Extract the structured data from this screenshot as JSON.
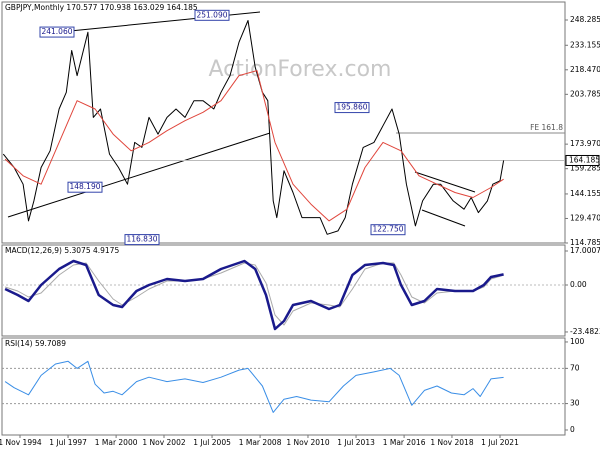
{
  "chart_data": [
    {
      "type": "line",
      "title": "GBPJPY,Monthly 170.577 170.938 163.029 164.185",
      "watermark": "ActionForex.com",
      "xlim": [
        1993.83,
        2025.11
      ],
      "ylim": [
        114.785,
        259.06
      ],
      "yticks": [
        248.285,
        233.155,
        {
          "value": 218.47,
          "label": "218.470"
        },
        203.785,
        {
          "value": 173.97,
          "label": "173.970"
        },
        159.285,
        144.155,
        {
          "value": 129.47,
          "label": "129.470"
        },
        114.785
      ],
      "current": 164.185,
      "fe_label": "FE 161.8",
      "annotations": [
        {
          "value": 241.06,
          "label": "241.060"
        },
        {
          "value": 251.09,
          "label": "251.090"
        },
        {
          "value": 148.19,
          "label": "148.190"
        },
        {
          "value": 116.83,
          "label": "116.830"
        },
        {
          "value": 195.86,
          "label": "195.860"
        },
        {
          "value": 122.75,
          "label": "122.750"
        }
      ],
      "series": [
        {
          "color": "#000000",
          "width": 1,
          "x": [
            1993.9,
            1994.5,
            1995.0,
            1995.3,
            1995.6,
            1996.0,
            1996.5,
            1997.0,
            1997.4,
            1997.7,
            1998.0,
            1998.6,
            1998.9,
            1999.3,
            1999.8,
            2000.3,
            2000.8,
            2001.2,
            2001.6,
            2002.0,
            2002.5,
            2003.0,
            2003.5,
            2004.0,
            2004.5,
            2005.0,
            2005.6,
            2006.0,
            2006.5,
            2007.0,
            2007.5,
            2007.9,
            2008.3,
            2008.6,
            2008.9,
            2009.1,
            2009.5,
            2010.0,
            2010.5,
            2010.8,
            2011.5,
            2011.9,
            2012.5,
            2012.9,
            2013.3,
            2013.9,
            2014.5,
            2015.0,
            2015.5,
            2015.9,
            2016.3,
            2016.8,
            2017.2,
            2017.8,
            2018.2,
            2018.9,
            2019.5,
            2019.9,
            2020.3,
            2020.8,
            2021.1,
            2021.5,
            2021.7
          ],
          "values": [
            168,
            160,
            150,
            128,
            140,
            160,
            170,
            195,
            205,
            230,
            215,
            241,
            190,
            195,
            168,
            160,
            150,
            175,
            172,
            190,
            180,
            190,
            195,
            190,
            200,
            200,
            195,
            205,
            215,
            235,
            248,
            220,
            205,
            200,
            140,
            130,
            158,
            145,
            130,
            130,
            130,
            120,
            122,
            130,
            150,
            172,
            175,
            185,
            195,
            180,
            150,
            125,
            140,
            150,
            150,
            140,
            135,
            142,
            133,
            140,
            150,
            152,
            164.185
          ]
        },
        {
          "color": "#e0463c",
          "width": 1,
          "x": [
            1994.0,
            1995,
            1996,
            1997,
            1998,
            1999,
            2000,
            2001,
            2002,
            2003,
            2004,
            2005,
            2006,
            2007,
            2008,
            2009,
            2010,
            2011,
            2012,
            2013,
            2014,
            2015,
            2016,
            2017,
            2018,
            2019,
            2020,
            2021,
            2021.7
          ],
          "values": [
            165,
            155,
            150,
            175,
            200,
            195,
            180,
            170,
            175,
            182,
            188,
            193,
            200,
            215,
            218,
            175,
            150,
            138,
            128,
            135,
            160,
            175,
            170,
            155,
            150,
            145,
            142,
            148,
            153
          ]
        }
      ]
    },
    {
      "type": "line",
      "title": "MACD(12,26,9) 5.3075 4.9175",
      "xlim": [
        1993.83,
        2025.11
      ],
      "ylim": [
        -25.5,
        20
      ],
      "yticks": [
        17.0007,
        {
          "value": 0,
          "label": "0.00"
        },
        -23.4823
      ],
      "series": [
        {
          "color": "#aaaaaa",
          "width": 1,
          "x": [
            1994,
            1994.7,
            1995.3,
            1996,
            1997,
            1997.8,
            1998.5,
            1999.2,
            2000,
            2000.5,
            2001.3,
            2002,
            2003,
            2004,
            2005,
            2006,
            2007.3,
            2007.9,
            2008.5,
            2009.0,
            2009.5,
            2010,
            2011,
            2012,
            2012.6,
            2013.3,
            2014,
            2015,
            2015.6,
            2016,
            2016.6,
            2017.3,
            2018,
            2019,
            2020,
            2020.6,
            2021,
            2021.7
          ],
          "values": [
            -1,
            -3,
            -6,
            -4,
            5,
            10,
            11,
            2,
            -7,
            -10,
            -6,
            -2,
            2,
            2,
            3,
            6,
            11,
            10,
            1,
            -15,
            -20,
            -13,
            -9,
            -10,
            -11,
            -2,
            8,
            11,
            11,
            5,
            -6,
            -9,
            -4,
            -3,
            -3,
            -1,
            3,
            4.9175
          ]
        },
        {
          "color": "#1a1a8c",
          "width": 2.5,
          "x": [
            1994,
            1994.7,
            1995.3,
            1996,
            1997,
            1997.8,
            1998.5,
            1999.2,
            2000,
            2000.5,
            2001.3,
            2002,
            2003,
            2004,
            2005,
            2006,
            2007.3,
            2007.9,
            2008.5,
            2009.0,
            2009.5,
            2010,
            2011,
            2012,
            2012.6,
            2013.3,
            2014,
            2015,
            2015.6,
            2016,
            2016.6,
            2017.3,
            2018,
            2019,
            2020,
            2020.6,
            2021,
            2021.7
          ],
          "values": [
            -2,
            -5,
            -8,
            0,
            8,
            12,
            10,
            -5,
            -10,
            -11,
            -3,
            0,
            3,
            2,
            3,
            8,
            12,
            8,
            -5,
            -22,
            -18,
            -10,
            -8,
            -12,
            -10,
            5,
            10,
            11,
            10,
            0,
            -10,
            -8,
            -2,
            -3,
            -3,
            0,
            4,
            5.3075
          ]
        }
      ]
    },
    {
      "type": "line",
      "title": "RSI(14) 59.7089",
      "xlim": [
        1993.83,
        2025.11
      ],
      "ylim": [
        -5.7,
        104.5
      ],
      "yticks": [
        100,
        70,
        30,
        0
      ],
      "dashed": [
        70,
        30
      ],
      "xticks": [
        {
          "value": 1994.83,
          "label": "1 Nov 1994"
        },
        {
          "value": 1997.5,
          "label": "1 Jul 1997"
        },
        {
          "value": 2000.17,
          "label": "1 Mar 2000"
        },
        {
          "value": 2002.83,
          "label": "1 Nov 2002"
        },
        {
          "value": 2005.5,
          "label": "1 Jul 2005"
        },
        {
          "value": 2008.17,
          "label": "1 Mar 2008"
        },
        {
          "value": 2010.83,
          "label": "1 Nov 2010"
        },
        {
          "value": 2013.5,
          "label": "1 Jul 2013"
        },
        {
          "value": 2016.17,
          "label": "1 Mar 2016"
        },
        {
          "value": 2018.83,
          "label": "1 Nov 2018"
        },
        {
          "value": 2021.5,
          "label": "1 Jul 2021"
        }
      ],
      "series": [
        {
          "color": "#3a8ee6",
          "width": 1,
          "x": [
            1994,
            1994.5,
            1995.3,
            1996,
            1996.8,
            1997.5,
            1998,
            1998.6,
            1999,
            1999.5,
            2000,
            2000.5,
            2001.3,
            2002,
            2003,
            2004,
            2005,
            2006,
            2007,
            2007.5,
            2008.3,
            2008.9,
            2009.5,
            2010.2,
            2011,
            2012,
            2012.8,
            2013.5,
            2014.5,
            2015.4,
            2015.9,
            2016.6,
            2017.3,
            2018,
            2018.8,
            2019.5,
            2020,
            2020.4,
            2021,
            2021.7
          ],
          "values": [
            55,
            48,
            40,
            62,
            75,
            78,
            70,
            78,
            52,
            42,
            44,
            40,
            55,
            60,
            55,
            58,
            54,
            60,
            68,
            70,
            50,
            20,
            35,
            38,
            34,
            32,
            50,
            62,
            66,
            70,
            62,
            28,
            45,
            50,
            42,
            40,
            47,
            38,
            58,
            59.7089
          ]
        }
      ]
    }
  ]
}
